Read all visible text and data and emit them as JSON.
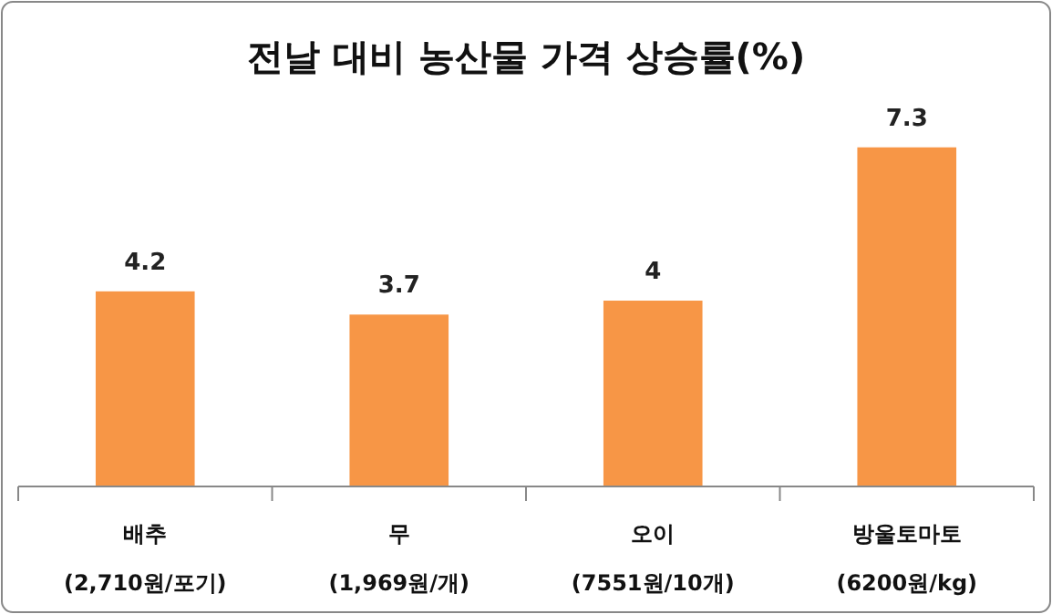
{
  "chart_data": {
    "type": "bar",
    "title": "전날 대비 농산물 가격 상승률(%)",
    "categories": [
      "배추\n(2,710원/포기)",
      "무\n(1,969원/개)",
      "오이\n(7551원/10개)",
      "방울토마토\n(6200원/kg)"
    ],
    "values": [
      4.2,
      3.7,
      4,
      7.3
    ],
    "color": "#f79646",
    "data_labels": true
  }
}
